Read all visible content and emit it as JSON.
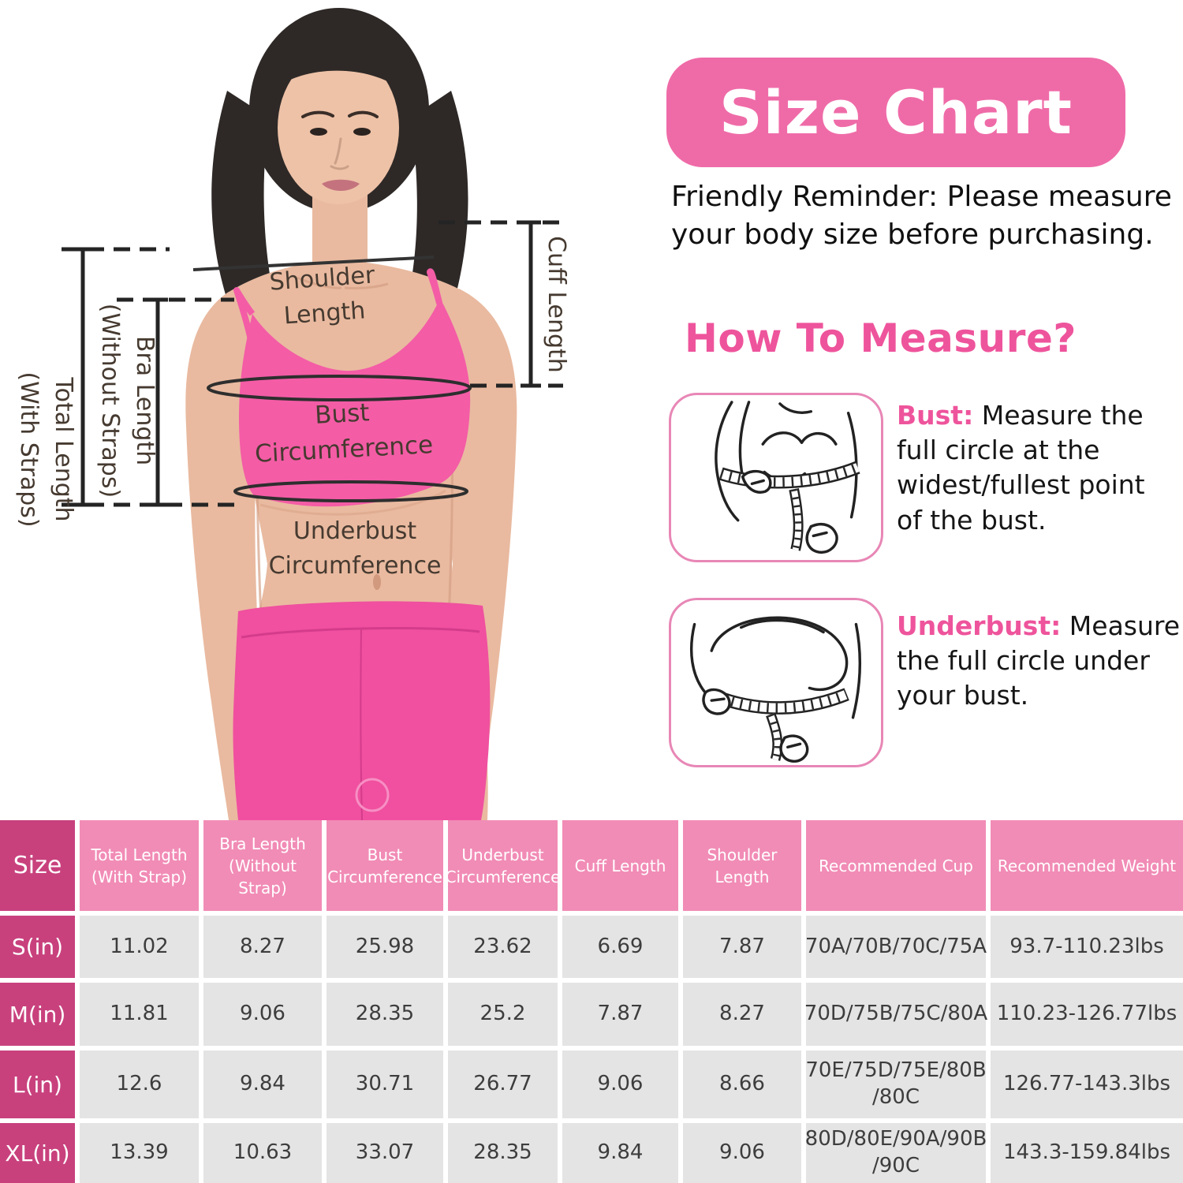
{
  "colors": {
    "accent_pink": "#ef6ba8",
    "heading_pink": "#ee549c",
    "table_header_pink": "#f18cb6",
    "table_label_magenta": "#c8417d",
    "table_cell_gray": "#e4e4e4",
    "bra_pink": "#f45ca6",
    "annotation_text": "#463a30"
  },
  "photo": {
    "labels": {
      "total_length": "Total Length\n(With Straps)",
      "bra_length": "Bra Length\n(Without Straps)",
      "shoulder_length": "Shoulder Length",
      "cuff_length": "Cuff Length",
      "bust": "Bust Circumference",
      "underbust": "Underbust\nCircumference"
    }
  },
  "panel": {
    "badge": "Size Chart",
    "reminder": "Friendly Reminder: Please measure\nyour body size before purchasing.",
    "how_to_heading": "How To Measure?",
    "instructions": [
      {
        "label": "Bust:",
        "text": "Measure the\nfull circle at the\nwidest/fullest point\nof the bust."
      },
      {
        "label": "Underbust:",
        "text": "Measure\nthe full circle under\nyour bust."
      }
    ]
  },
  "table": {
    "columns": [
      "Size",
      "Total Length\n(With Strap)",
      "Bra Length\n(Without Strap)",
      "Bust\nCircumference",
      "Underbust\nCircumference",
      "Cuff Length",
      "Shoulder\nLength",
      "Recommended Cup",
      "Recommended Weight"
    ],
    "rows": [
      {
        "size": "S(in)",
        "values": [
          "11.02",
          "8.27",
          "25.98",
          "23.62",
          "6.69",
          "7.87",
          "70A/70B/70C/75A",
          "93.7-110.23lbs"
        ]
      },
      {
        "size": "M(in)",
        "values": [
          "11.81",
          "9.06",
          "28.35",
          "25.2",
          "7.87",
          "8.27",
          "70D/75B/75C/80A",
          "110.23-126.77lbs"
        ]
      },
      {
        "size": "L(in)",
        "values": [
          "12.6",
          "9.84",
          "30.71",
          "26.77",
          "9.06",
          "8.66",
          "70E/75D/75E/80B\n/80C",
          "126.77-143.3lbs"
        ]
      },
      {
        "size": "XL(in)",
        "values": [
          "13.39",
          "10.63",
          "33.07",
          "28.35",
          "9.84",
          "9.06",
          "80D/80E/90A/90B\n/90C",
          "143.3-159.84lbs"
        ]
      }
    ]
  }
}
